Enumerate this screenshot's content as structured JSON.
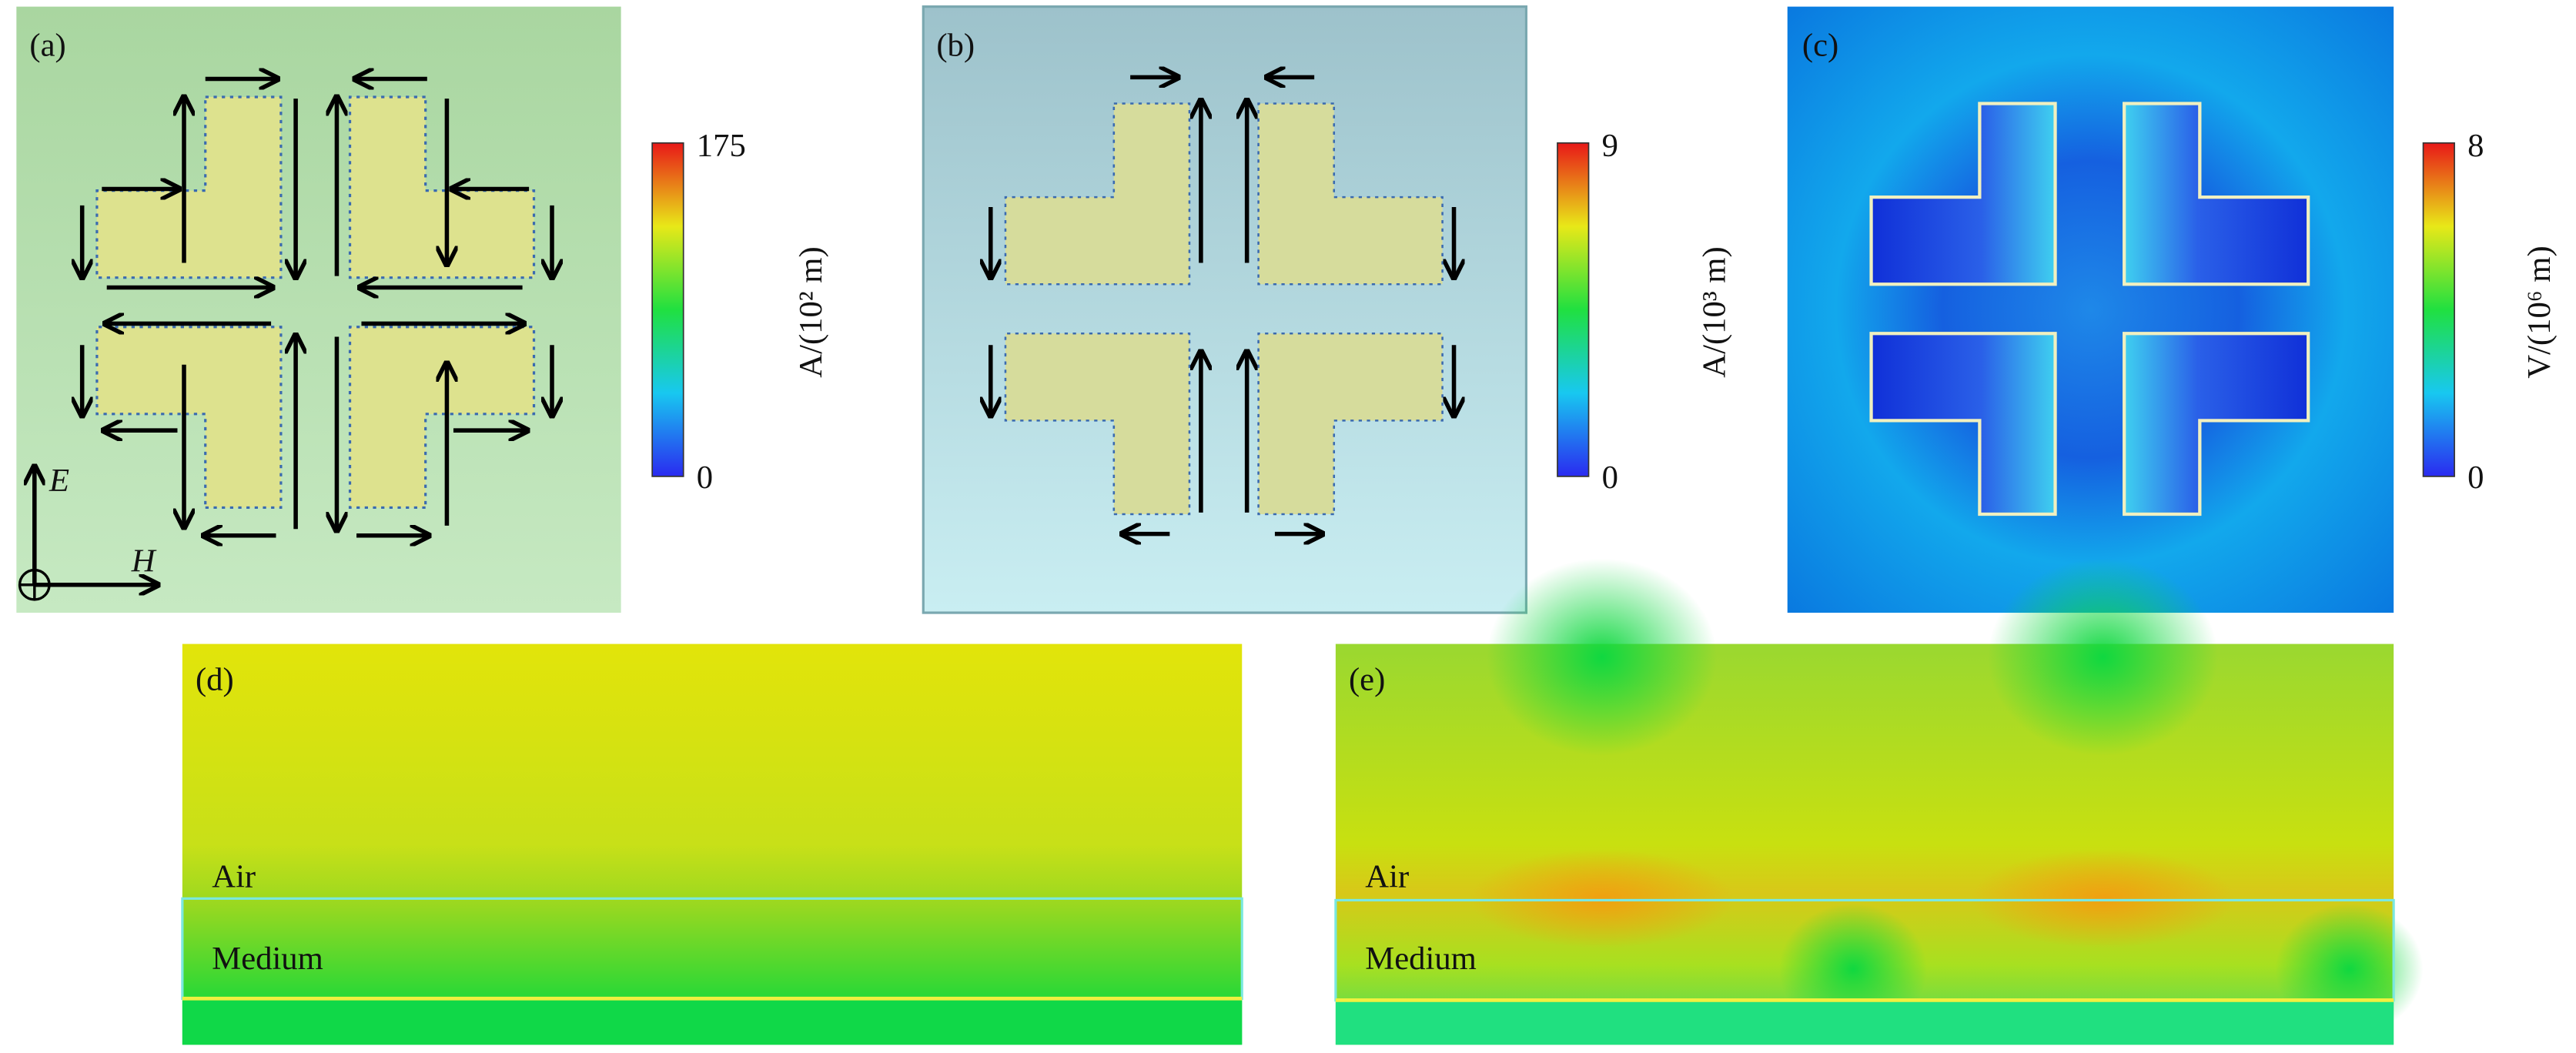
{
  "panels": [
    {
      "label": "(a)",
      "colorbar": {
        "max": 175,
        "min": 0,
        "title": "A/(10² m)"
      },
      "axes": {
        "vertical": "E",
        "horizontal": "H"
      }
    },
    {
      "label": "(b)",
      "colorbar": {
        "max": 9,
        "min": 0,
        "title": "A/(10³ m)"
      }
    },
    {
      "label": "(c)",
      "colorbar": {
        "max": 8,
        "min": 0,
        "title": "V/(10⁶ m)"
      }
    },
    {
      "label": "(d)",
      "layers": [
        "Air",
        "Medium"
      ]
    },
    {
      "label": "(e)",
      "layers": [
        "Air",
        "Medium"
      ]
    }
  ]
}
